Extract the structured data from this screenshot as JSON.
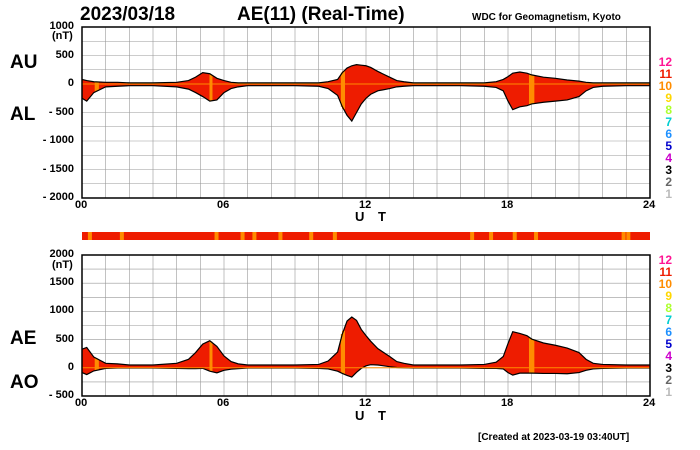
{
  "header": {
    "date": "2023/03/18",
    "title": "AE(11) (Real-Time)",
    "credit": "WDC for Geomagnetism, Kyoto"
  },
  "footer": {
    "created": "[Created at 2023-03-19 03:40UT]"
  },
  "labels": {
    "au": "AU",
    "al": "AL",
    "ae": "AE",
    "ao": "AO",
    "unit": "(nT)",
    "ut": "U T"
  },
  "level_legend": [
    {
      "label": "12",
      "color": "#ff1493"
    },
    {
      "label": "11",
      "color": "#ee1c00"
    },
    {
      "label": "10",
      "color": "#ff8c00"
    },
    {
      "label": "9",
      "color": "#ffd700"
    },
    {
      "label": "8",
      "color": "#adff2f"
    },
    {
      "label": "7",
      "color": "#00ced1"
    },
    {
      "label": "6",
      "color": "#1e90ff"
    },
    {
      "label": "5",
      "color": "#0000cd"
    },
    {
      "label": "4",
      "color": "#cc00cc"
    },
    {
      "label": "3",
      "color": "#000000"
    },
    {
      "label": "2",
      "color": "#666666"
    },
    {
      "label": "1",
      "color": "#bbbbbb"
    }
  ],
  "chart_data": [
    {
      "type": "area",
      "panel": "AU/AL",
      "xlabel": "U T",
      "ylabel": "(nT)",
      "xlim": [
        0,
        24
      ],
      "ylim": [
        -2000,
        1000
      ],
      "xticks": [
        "00",
        "06",
        "12",
        "18",
        "24"
      ],
      "yticks": [
        "1000",
        "500",
        "0",
        "- 500",
        "- 1000",
        "- 1500",
        "- 2000"
      ],
      "ytick_values": [
        1000,
        500,
        0,
        -500,
        -1000,
        -1500,
        -2000
      ],
      "grid": true,
      "x": [
        0,
        0.2,
        0.5,
        1,
        1.5,
        2,
        3,
        4,
        4.5,
        4.8,
        5.1,
        5.4,
        5.7,
        6,
        6.3,
        6.6,
        7,
        8,
        9,
        10,
        10.4,
        10.8,
        11,
        11.2,
        11.4,
        11.6,
        11.8,
        12,
        12.2,
        12.5,
        13,
        13.3,
        13.6,
        14,
        15,
        16,
        17,
        17.5,
        17.8,
        18,
        18.2,
        18.5,
        18.8,
        19,
        19.5,
        20,
        20.5,
        21,
        21.3,
        21.6,
        22,
        23,
        24
      ],
      "au": [
        80,
        60,
        40,
        30,
        30,
        20,
        20,
        30,
        60,
        120,
        200,
        180,
        100,
        60,
        30,
        20,
        20,
        20,
        20,
        20,
        40,
        80,
        200,
        280,
        320,
        340,
        330,
        320,
        290,
        220,
        120,
        60,
        40,
        20,
        20,
        20,
        20,
        40,
        80,
        130,
        190,
        210,
        190,
        160,
        120,
        100,
        70,
        50,
        30,
        20,
        20,
        20,
        20
      ],
      "al": [
        -250,
        -300,
        -150,
        -50,
        -40,
        -30,
        -30,
        -50,
        -90,
        -150,
        -220,
        -300,
        -280,
        -150,
        -80,
        -50,
        -30,
        -30,
        -30,
        -40,
        -80,
        -200,
        -400,
        -550,
        -650,
        -500,
        -350,
        -250,
        -180,
        -120,
        -80,
        -50,
        -40,
        -30,
        -30,
        -30,
        -40,
        -60,
        -120,
        -300,
        -450,
        -400,
        -380,
        -350,
        -320,
        -300,
        -280,
        -220,
        -120,
        -60,
        -40,
        -30,
        -30
      ]
    },
    {
      "type": "area",
      "panel": "AE/AO",
      "xlabel": "U T",
      "ylabel": "(nT)",
      "xlim": [
        0,
        24
      ],
      "ylim": [
        -500,
        2000
      ],
      "xticks": [
        "00",
        "06",
        "12",
        "18",
        "24"
      ],
      "yticks": [
        "2000",
        "1500",
        "1000",
        "500",
        "0",
        "- 500"
      ],
      "ytick_values": [
        2000,
        1500,
        1000,
        500,
        0,
        -500
      ],
      "grid": true,
      "x": [
        0,
        0.2,
        0.5,
        1,
        1.5,
        2,
        3,
        4,
        4.5,
        4.8,
        5.1,
        5.4,
        5.7,
        6,
        6.3,
        6.6,
        7,
        8,
        9,
        10,
        10.4,
        10.8,
        11,
        11.2,
        11.4,
        11.6,
        11.8,
        12,
        12.2,
        12.5,
        13,
        13.3,
        13.6,
        14,
        15,
        16,
        17,
        17.5,
        17.8,
        18,
        18.2,
        18.5,
        18.8,
        19,
        19.5,
        20,
        20.5,
        21,
        21.3,
        21.6,
        22,
        23,
        24
      ],
      "ae": [
        330,
        360,
        190,
        80,
        70,
        50,
        50,
        80,
        150,
        270,
        420,
        480,
        380,
        210,
        110,
        70,
        50,
        50,
        50,
        60,
        120,
        280,
        600,
        830,
        900,
        840,
        680,
        570,
        470,
        340,
        200,
        110,
        80,
        50,
        50,
        50,
        60,
        100,
        200,
        430,
        640,
        610,
        570,
        510,
        440,
        400,
        350,
        270,
        150,
        80,
        60,
        50,
        50
      ],
      "ao": [
        -85,
        -120,
        -55,
        -10,
        -5,
        -5,
        -5,
        -10,
        -15,
        -15,
        -10,
        -60,
        -90,
        -45,
        -25,
        -15,
        -5,
        -5,
        -5,
        -10,
        -20,
        -60,
        -100,
        -135,
        -165,
        -80,
        -10,
        35,
        55,
        50,
        20,
        5,
        0,
        -5,
        -5,
        -5,
        -10,
        -10,
        -20,
        -85,
        -130,
        -95,
        -95,
        -95,
        -100,
        -100,
        -105,
        -85,
        -45,
        -20,
        -10,
        -5,
        -5
      ]
    }
  ],
  "quality_bar": {
    "base_color": "#ee1c00",
    "marker_color": "#ff8c00",
    "marker_hours": [
      0.25,
      1.6,
      5.6,
      6.7,
      7.2,
      8.3,
      9.6,
      10.6,
      16.4,
      17.2,
      18.2,
      19.1,
      22.8,
      23.0
    ]
  },
  "colors": {
    "fill": "#ee1c00",
    "line": "#000000",
    "highlight": "#ff8c00",
    "grid": "#999999"
  },
  "highlight_hours": [
    0.6,
    0.65,
    5.45,
    11.0,
    11.05,
    18.95,
    19.0,
    19.05
  ]
}
